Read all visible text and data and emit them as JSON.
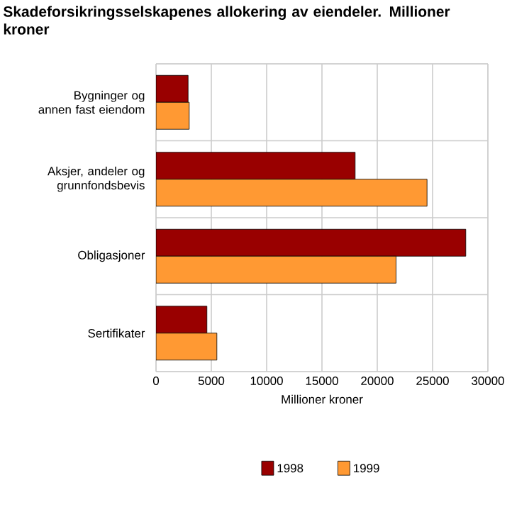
{
  "chart_data": {
    "type": "bar",
    "orientation": "horizontal",
    "title": "Skadeforsikringsselskapenes allokering av eiendeler. Millioner kroner",
    "xlabel": "Millioner kroner",
    "categories": [
      "Bygninger og annen fast eiendom",
      "Aksjer, andeler og grunnfondsbevis",
      "Obligasjoner",
      "Sertifikater"
    ],
    "series": [
      {
        "name": "1998",
        "color": "#990000",
        "values": [
          2900,
          18000,
          28000,
          4600
        ]
      },
      {
        "name": "1999",
        "color": "#ff9933",
        "values": [
          3000,
          24500,
          21700,
          5500
        ]
      }
    ],
    "xlim": [
      0,
      30000
    ],
    "xticks": [
      0,
      5000,
      10000,
      15000,
      20000,
      25000,
      30000
    ],
    "grid": true,
    "legend": "bottom"
  }
}
